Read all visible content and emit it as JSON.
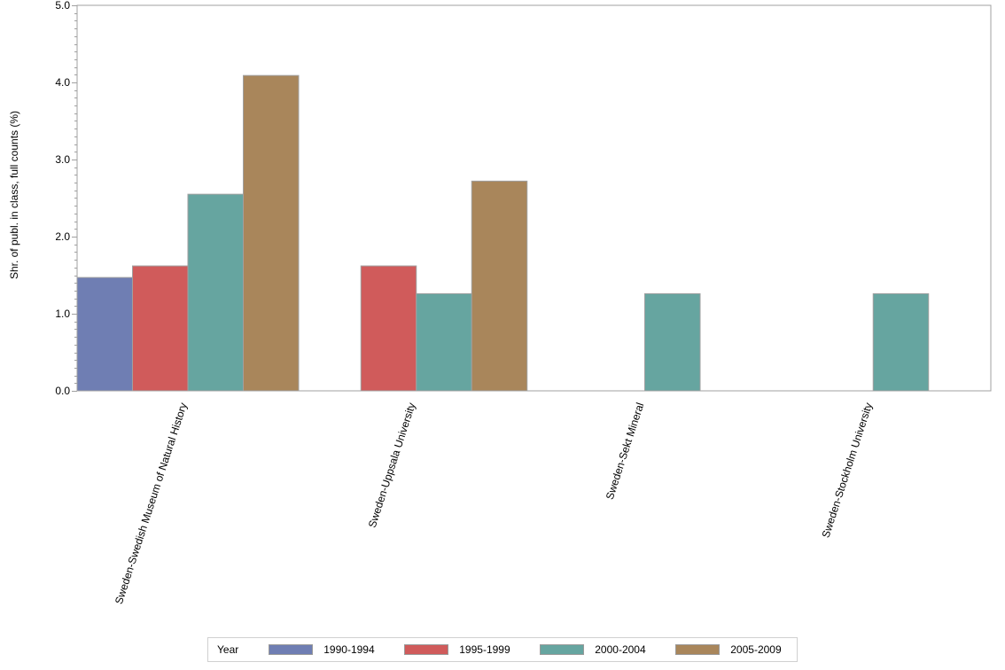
{
  "chart_data": {
    "type": "bar",
    "title": "",
    "xlabel": "",
    "ylabel": "Shr. of publ. in class, full counts (%)",
    "ylim": [
      0,
      5
    ],
    "yticks": [
      "0.0",
      "1.0",
      "2.0",
      "3.0",
      "4.0",
      "5.0"
    ],
    "grid": false,
    "legend_position": "bottom",
    "legend_title": "Year",
    "categories": [
      "Sweden-Swedish Museum of Natural History",
      "Sweden-Uppsala University",
      "Sweden-Sekt Mineral",
      "Sweden-Stockholm University"
    ],
    "series": [
      {
        "name": "1990-1994",
        "color": "#6f7eb3",
        "values": [
          1.47,
          null,
          null,
          null
        ]
      },
      {
        "name": "1995-1999",
        "color": "#d05b5b",
        "values": [
          1.62,
          1.62,
          null,
          null
        ]
      },
      {
        "name": "2000-2004",
        "color": "#66a5a0",
        "values": [
          2.55,
          1.26,
          1.26,
          1.26
        ]
      },
      {
        "name": "2005-2009",
        "color": "#a9865b",
        "values": [
          4.09,
          2.72,
          null,
          null
        ]
      }
    ]
  }
}
